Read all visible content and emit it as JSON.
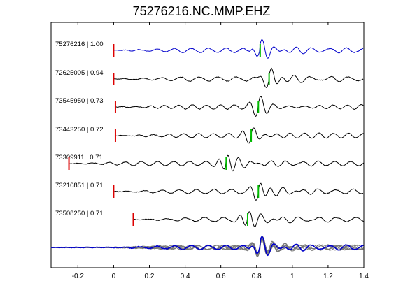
{
  "chart_data": {
    "type": "line",
    "title": "75276216.NC.MMP.EHZ",
    "xlabel": "",
    "ylabel": "",
    "xlim": [
      -0.35,
      1.4
    ],
    "xticks": [
      "-0.2",
      "0",
      "0.2",
      "0.4",
      "0.6",
      "0.8",
      "1",
      "1.2",
      "1.4"
    ],
    "xtick_values": [
      -0.2,
      0,
      0.2,
      0.4,
      0.6,
      0.8,
      1.0,
      1.2,
      1.4
    ],
    "grid": false,
    "colors": {
      "reference": "#0000cc",
      "trace": "#000000",
      "overlay": "#777777",
      "red_pick": "#dd0000",
      "green_pick": "#00bb00"
    },
    "traces": [
      {
        "id": "75276216",
        "cc": "1.00",
        "start": 0.0,
        "red_pick": 0.0,
        "green_pick": 0.82,
        "color": "reference",
        "seed": 1
      },
      {
        "id": "72625005",
        "cc": "0.94",
        "start": 0.0,
        "red_pick": 0.0,
        "green_pick": 0.87,
        "color": "trace",
        "seed": 2
      },
      {
        "id": "73545950",
        "cc": "0.73",
        "start": 0.01,
        "red_pick": 0.01,
        "green_pick": 0.81,
        "color": "trace",
        "seed": 3
      },
      {
        "id": "73443250",
        "cc": "0.72",
        "start": 0.01,
        "red_pick": 0.01,
        "green_pick": 0.77,
        "color": "trace",
        "seed": 4
      },
      {
        "id": "73309911",
        "cc": "0.71",
        "start": -0.25,
        "red_pick": -0.25,
        "green_pick": 0.63,
        "color": "trace",
        "seed": 5
      },
      {
        "id": "73210851",
        "cc": "0.71",
        "start": 0.0,
        "red_pick": 0.0,
        "green_pick": 0.81,
        "color": "trace",
        "seed": 6
      },
      {
        "id": "73508250",
        "cc": "0.71",
        "start": 0.11,
        "red_pick": 0.11,
        "green_pick": 0.75,
        "color": "trace",
        "seed": 7
      }
    ],
    "stack": {
      "label": "stack overlay of all traces",
      "color": "overlay",
      "highlight": "reference"
    }
  }
}
